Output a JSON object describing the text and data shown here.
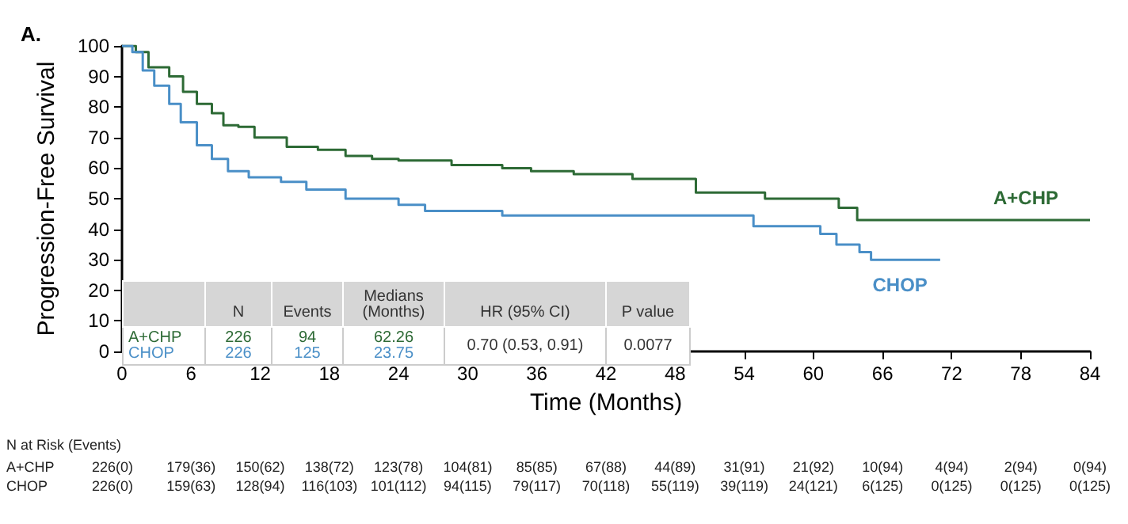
{
  "chart_data": {
    "type": "step",
    "title": "A.",
    "xlabel": "Time (Months)",
    "ylabel": "Progression-Free Survival",
    "xlim": [
      0,
      84
    ],
    "xticks": [
      0,
      6,
      12,
      18,
      24,
      30,
      36,
      42,
      48,
      54,
      60,
      66,
      72,
      78,
      84
    ],
    "ylim": [
      0,
      100
    ],
    "yticks": [
      0,
      10,
      20,
      30,
      40,
      50,
      60,
      70,
      80,
      90,
      100
    ],
    "grid": false,
    "legend": false,
    "series": [
      {
        "name": "A+CHP",
        "color": "#2d6a35",
        "x": [
          0,
          1.2,
          2.3,
          4.1,
          5.3,
          6.5,
          7.8,
          8.8,
          10.1,
          11.5,
          14.3,
          17,
          19.4,
          21.7,
          24,
          28.6,
          33,
          35.5,
          39.2,
          44.3,
          49.8,
          55.8,
          62.2,
          63.8,
          84
        ],
        "values": [
          100,
          98,
          93,
          90,
          85,
          81,
          78,
          74,
          73.5,
          70,
          67,
          66,
          64,
          63,
          62.5,
          61,
          60,
          59,
          58,
          56.5,
          52,
          50,
          47,
          43,
          43
        ]
      },
      {
        "name": "CHOP",
        "color": "#4a8fc7",
        "x": [
          0,
          0.9,
          1.8,
          2.8,
          4.1,
          5.1,
          6.5,
          7.8,
          9.2,
          11,
          13.8,
          16,
          19.4,
          24,
          26.3,
          33,
          54.8,
          60.6,
          62,
          64,
          65,
          71
        ],
        "values": [
          100,
          98,
          92,
          87,
          81,
          75,
          67.5,
          63,
          59,
          57,
          55.5,
          53,
          50,
          48,
          46,
          44.5,
          41,
          38.5,
          35,
          32.5,
          30,
          30
        ]
      }
    ],
    "annotations": [
      "N",
      "Events",
      "Medians (Months)",
      "HR (95% CI)",
      "P value",
      "A+CHP",
      "226",
      "94",
      "62.26",
      "CHOP",
      "226",
      "125",
      "23.75",
      "0.70 (0.53, 0.91)",
      "0.0077",
      "N at Risk (Events)",
      "A+CHP",
      "226(0)",
      "179(36)",
      "150(62)",
      "138(72)",
      "123(78)",
      "104(81)",
      "85(85)",
      "67(88)",
      "44(89)",
      "31(91)",
      "21(92)",
      "10(94)",
      "4(94)",
      "2(94)",
      "0(94)",
      "CHOP",
      "226(0)",
      "159(63)",
      "128(94)",
      "116(103)",
      "101(112)",
      "94(115)",
      "79(117)",
      "70(118)",
      "55(119)",
      "39(119)",
      "24(121)",
      "6(125)",
      "0(125)",
      "0(125)",
      "0(125)"
    ]
  }
}
